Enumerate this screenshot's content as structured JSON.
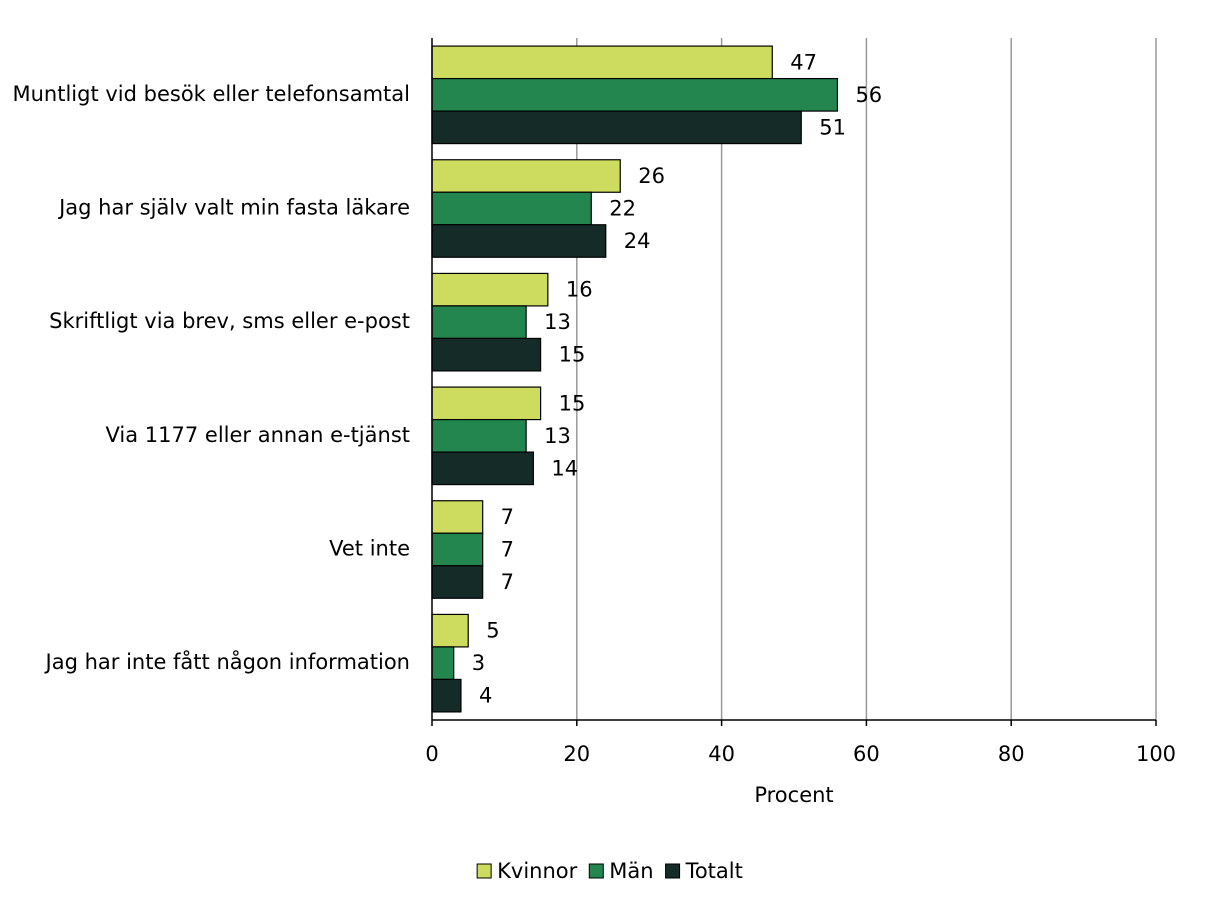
{
  "chart_data": {
    "type": "barh",
    "categories": [
      "Muntligt vid besök eller telefonsamtal",
      "Jag har själv valt min fasta läkare",
      "Skriftligt via brev, sms eller e-post",
      "Via 1177 eller annan e-tjänst",
      "Vet inte",
      "Jag har inte fått någon information"
    ],
    "series": [
      {
        "name": "Kvinnor",
        "color": "#cddc5e",
        "values": [
          47,
          26,
          16,
          15,
          7,
          5
        ]
      },
      {
        "name": "Män",
        "color": "#23864f",
        "values": [
          56,
          22,
          13,
          13,
          7,
          3
        ]
      },
      {
        "name": "Totalt",
        "color": "#142b28",
        "values": [
          51,
          24,
          15,
          14,
          7,
          4
        ]
      }
    ],
    "xlabel": "Procent",
    "xlim": [
      0,
      100
    ],
    "xticks": [
      0,
      20,
      40,
      60,
      80,
      100
    ],
    "grid": true,
    "legend": "bottom"
  }
}
